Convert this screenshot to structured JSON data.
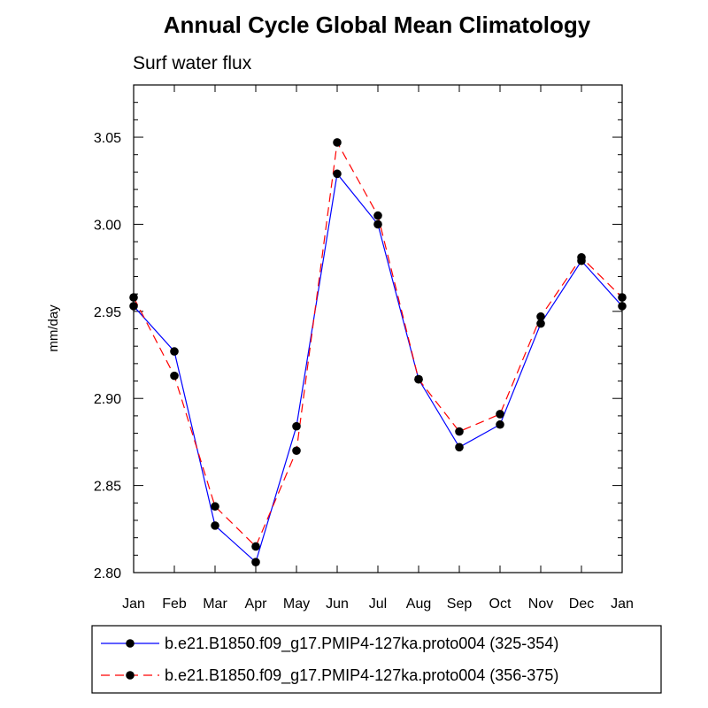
{
  "chart_data": {
    "type": "line",
    "title": "Annual Cycle Global Mean Climatology",
    "subtitle": "Surf water flux",
    "ylabel": "mm/day",
    "xlabel": "",
    "categories": [
      "Jan",
      "Feb",
      "Mar",
      "Apr",
      "May",
      "Jun",
      "Jul",
      "Aug",
      "Sep",
      "Oct",
      "Nov",
      "Dec",
      "Jan"
    ],
    "ylim": [
      2.8,
      3.08
    ],
    "yticks": [
      "2.80",
      "2.85",
      "2.90",
      "2.95",
      "3.00",
      "3.05"
    ],
    "grid": false,
    "legend_position": "bottom",
    "series": [
      {
        "name": "b.e21.B1850.f09_g17.PMIP4-127ka.proto004 (325-354)",
        "color": "#0000ff",
        "dash": "solid",
        "values": [
          2.953,
          2.927,
          2.827,
          2.806,
          2.884,
          3.029,
          3.0,
          2.911,
          2.872,
          2.885,
          2.943,
          2.979,
          2.953
        ]
      },
      {
        "name": "b.e21.B1850.f09_g17.PMIP4-127ka.proto004 (356-375)",
        "color": "#ff0000",
        "dash": "dashed",
        "values": [
          2.958,
          2.913,
          2.838,
          2.815,
          2.87,
          3.047,
          3.005,
          2.911,
          2.881,
          2.891,
          2.947,
          2.981,
          2.958
        ]
      }
    ]
  }
}
